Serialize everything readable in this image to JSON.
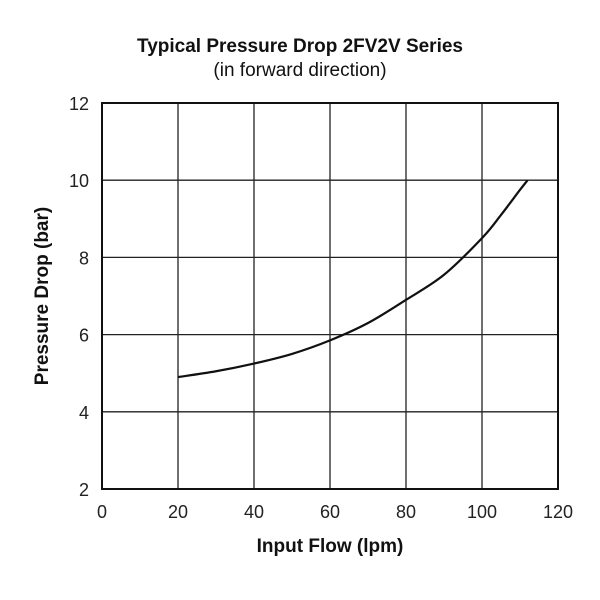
{
  "chart_data": {
    "type": "line",
    "title": "Typical Pressure Drop 2FV2V Series",
    "subtitle": "(in forward direction)",
    "xlabel": "Input Flow (lpm)",
    "ylabel": "Pressure Drop (bar)",
    "xlim": [
      0,
      120
    ],
    "ylim": [
      2,
      12
    ],
    "xticks": [
      0,
      20,
      40,
      60,
      80,
      100,
      120
    ],
    "yticks": [
      2,
      4,
      6,
      8,
      10,
      12
    ],
    "grid": true,
    "series": [
      {
        "name": "Pressure Drop",
        "x": [
          20,
          30,
          40,
          50,
          60,
          70,
          80,
          90,
          100,
          105,
          110,
          112
        ],
        "y": [
          4.9,
          5.05,
          5.25,
          5.5,
          5.85,
          6.3,
          6.9,
          7.55,
          8.5,
          9.1,
          9.75,
          10.0
        ]
      }
    ]
  }
}
